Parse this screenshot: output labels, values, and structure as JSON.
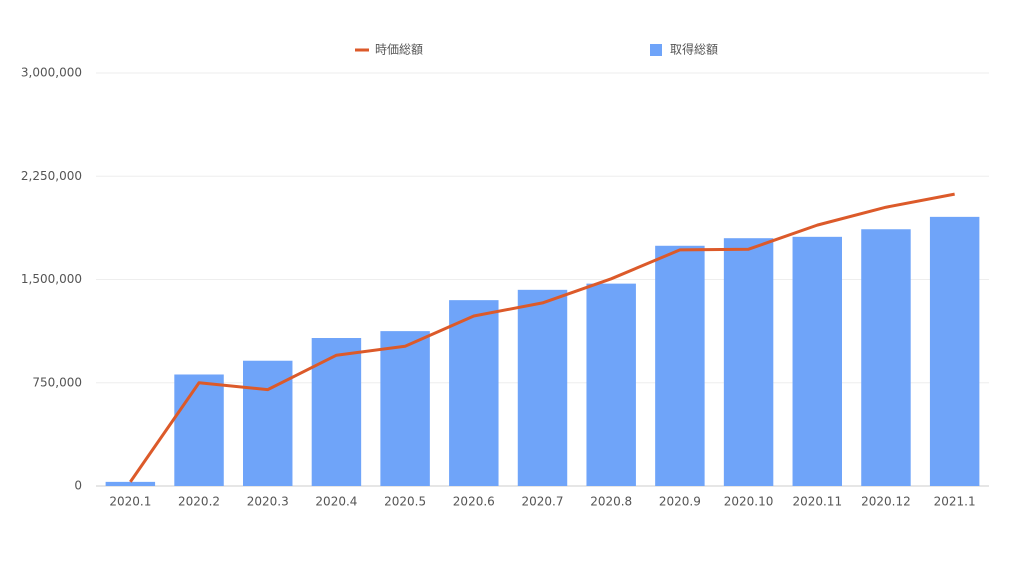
{
  "chart_data": {
    "type": "bar",
    "categories": [
      "2020.1",
      "2020.2",
      "2020.3",
      "2020.4",
      "2020.5",
      "2020.6",
      "2020.7",
      "2020.8",
      "2020.9",
      "2020.10",
      "2020.11",
      "2020.12",
      "2021.1"
    ],
    "series": [
      {
        "name": "時価総額",
        "type": "line",
        "color": "#dc5a2a",
        "values": [
          30000,
          750000,
          700000,
          950000,
          1015000,
          1235000,
          1330000,
          1505000,
          1715000,
          1720000,
          1895000,
          2025000,
          2120000
        ]
      },
      {
        "name": "取得総額",
        "type": "bar",
        "color": "#6fa4f9",
        "values": [
          30000,
          810000,
          910000,
          1075000,
          1125000,
          1350000,
          1425000,
          1470000,
          1745000,
          1800000,
          1810000,
          1865000,
          1955000
        ]
      }
    ],
    "ylim": [
      0,
      3000000
    ],
    "yticks": [
      0,
      {
        "value": 750000,
        "label": "750,000"
      },
      {
        "value": 1500000,
        "label": "1,500,000"
      },
      {
        "value": 2250000,
        "label": "2,250,000"
      },
      {
        "value": 3000000,
        "label": "3,000,000"
      }
    ],
    "grid": true
  }
}
